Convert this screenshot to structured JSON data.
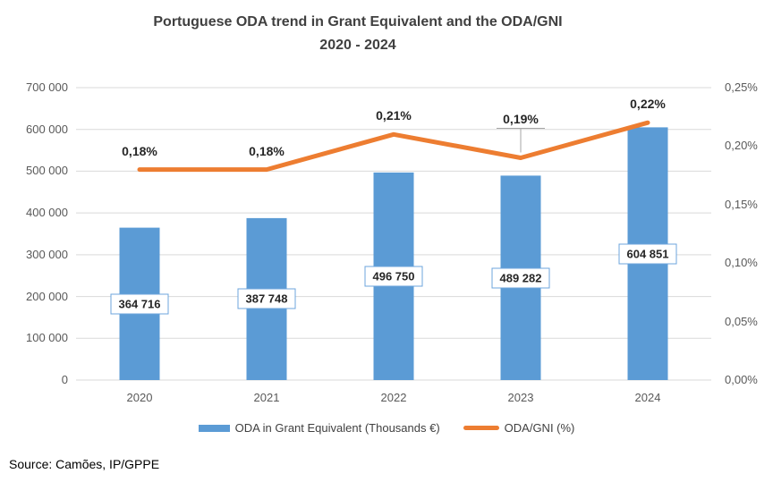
{
  "title": {
    "line1": "Portuguese ODA trend in Grant Equivalent and the ODA/GNI",
    "line2": "2020 - 2024"
  },
  "source": "Source: Camões, IP/GPPE",
  "legend": [
    {
      "label": "ODA in Grant Equivalent (Thousands €)",
      "type": "bar",
      "color": "#5B9BD5"
    },
    {
      "label": "ODA/GNI (%)",
      "type": "line",
      "color": "#ED7D31"
    }
  ],
  "colors": {
    "bar": "#5B9BD5",
    "line": "#ED7D31",
    "gridline": "#D9D9D9",
    "axis_text": "#595959",
    "title_text": "#404040",
    "label_box_border": "#6CA5DC",
    "leader_line": "#A6A6A6"
  },
  "chart_data": {
    "type": "combo (bar + line)",
    "title": "Portuguese ODA trend in Grant Equivalent and the ODA/GNI 2020 - 2024",
    "categories": [
      "2020",
      "2021",
      "2022",
      "2023",
      "2024"
    ],
    "series": [
      {
        "name": "ODA in Grant Equivalent (Thousands €)",
        "type": "bar",
        "axis": "left",
        "color": "#5B9BD5",
        "values": [
          364716,
          387748,
          496750,
          489282,
          604851
        ],
        "labels": [
          "364 716",
          "387 748",
          "496 750",
          "489 282",
          "604 851"
        ]
      },
      {
        "name": "ODA/GNI (%)",
        "type": "line",
        "axis": "right",
        "color": "#ED7D31",
        "values": [
          0.18,
          0.18,
          0.21,
          0.19,
          0.22
        ],
        "labels": [
          "0,18%",
          "0,18%",
          "0,21%",
          "0,19%",
          "0,22%"
        ]
      }
    ],
    "left_axis": {
      "min": 0,
      "max": 700000,
      "step": 100000,
      "tick_labels": [
        "0",
        "100 000",
        "200 000",
        "300 000",
        "400 000",
        "500 000",
        "600 000",
        "700 000"
      ]
    },
    "right_axis": {
      "min": 0,
      "max": 0.25,
      "step": 0.05,
      "tick_labels": [
        "0,00%",
        "0,05%",
        "0,10%",
        "0,15%",
        "0,20%",
        "0,25%"
      ]
    },
    "grid": true,
    "legend_position": "bottom",
    "line_label_offset": 21,
    "line_label_leader_index": 3,
    "line_label_leader_offset": 43
  }
}
